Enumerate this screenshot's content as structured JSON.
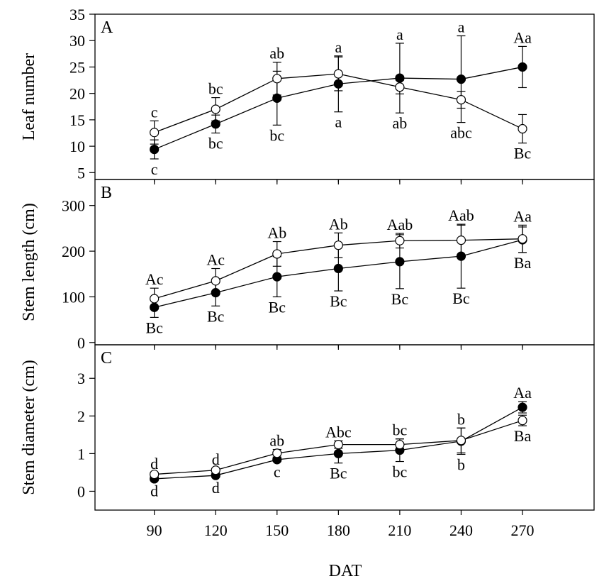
{
  "chart_data": [
    {
      "type": "line",
      "panel_label": "A",
      "ylabel": "Leaf number",
      "x": [
        90,
        120,
        150,
        180,
        210,
        240,
        270
      ],
      "ylim": [
        3.7,
        35
      ],
      "yticks": [
        5,
        10,
        15,
        20,
        25,
        30,
        35
      ],
      "series": [
        {
          "marker": "filled",
          "values": [
            9.4,
            14.2,
            19.1,
            21.8,
            22.9,
            22.7,
            25.0
          ],
          "error": [
            1.8,
            1.7,
            5.1,
            5.3,
            6.6,
            8.2,
            3.9
          ]
        },
        {
          "marker": "open",
          "values": [
            12.6,
            17.0,
            22.8,
            23.7,
            21.2,
            18.8,
            13.3
          ],
          "error": [
            2.2,
            2.2,
            3.1,
            3.2,
            1.3,
            1.6,
            2.7
          ]
        }
      ],
      "annotations_upper": [
        "c",
        "bc",
        "ab",
        "a",
        "a",
        "a",
        "Aa"
      ],
      "annotations_lower": [
        "c",
        "bc",
        "bc",
        "a",
        "ab",
        "abc",
        "Bc"
      ]
    },
    {
      "type": "line",
      "panel_label": "B",
      "ylabel": "Stem length (cm)",
      "x": [
        90,
        120,
        150,
        180,
        210,
        240,
        270
      ],
      "ylim": [
        -5,
        357
      ],
      "yticks": [
        0,
        100,
        200,
        300
      ],
      "series": [
        {
          "marker": "filled",
          "values": [
            77,
            109,
            144,
            162,
            177,
            189,
            225
          ],
          "error": [
            22,
            29,
            44,
            49,
            59,
            70,
            28
          ]
        },
        {
          "marker": "open",
          "values": [
            96,
            135,
            194,
            213,
            223,
            224,
            227
          ],
          "error": [
            23,
            27,
            27,
            27,
            16,
            33,
            30
          ]
        }
      ],
      "annotations_upper": [
        "Ac",
        "Ac",
        "Ab",
        "Ab",
        "Aab",
        "Aab",
        "Aa"
      ],
      "annotations_lower": [
        "Bc",
        "Bc",
        "Bc",
        "Bc",
        "Bc",
        "Bc",
        "Ba"
      ]
    },
    {
      "type": "line",
      "panel_label": "C",
      "ylabel": "Stem diameter (cm)",
      "x": [
        90,
        120,
        150,
        180,
        210,
        240,
        270
      ],
      "ylim": [
        -0.5,
        3.89
      ],
      "yticks": [
        0,
        1,
        2,
        3
      ],
      "series": [
        {
          "marker": "filled",
          "values": [
            0.33,
            0.42,
            0.84,
            1.0,
            1.09,
            1.33,
            2.23
          ],
          "error": [
            0.05,
            0.05,
            0.05,
            0.25,
            0.3,
            0.35,
            0.15
          ]
        },
        {
          "marker": "open",
          "values": [
            0.45,
            0.56,
            1.01,
            1.24,
            1.24,
            1.35,
            1.88
          ],
          "error": [
            0.05,
            0.05,
            0.1,
            0.1,
            0.15,
            0.33,
            0.14
          ]
        }
      ],
      "annotations_upper": [
        "d",
        "d",
        "ab",
        "Abc",
        "bc",
        "b",
        "Aa"
      ],
      "annotations_lower": [
        "d",
        "d",
        "c",
        "Bc",
        "bc",
        "b",
        "Ba"
      ]
    }
  ],
  "xlabel": "DAT",
  "xticks": [
    90,
    120,
    150,
    180,
    210,
    240,
    270
  ],
  "xlim": [
    61,
    305
  ]
}
